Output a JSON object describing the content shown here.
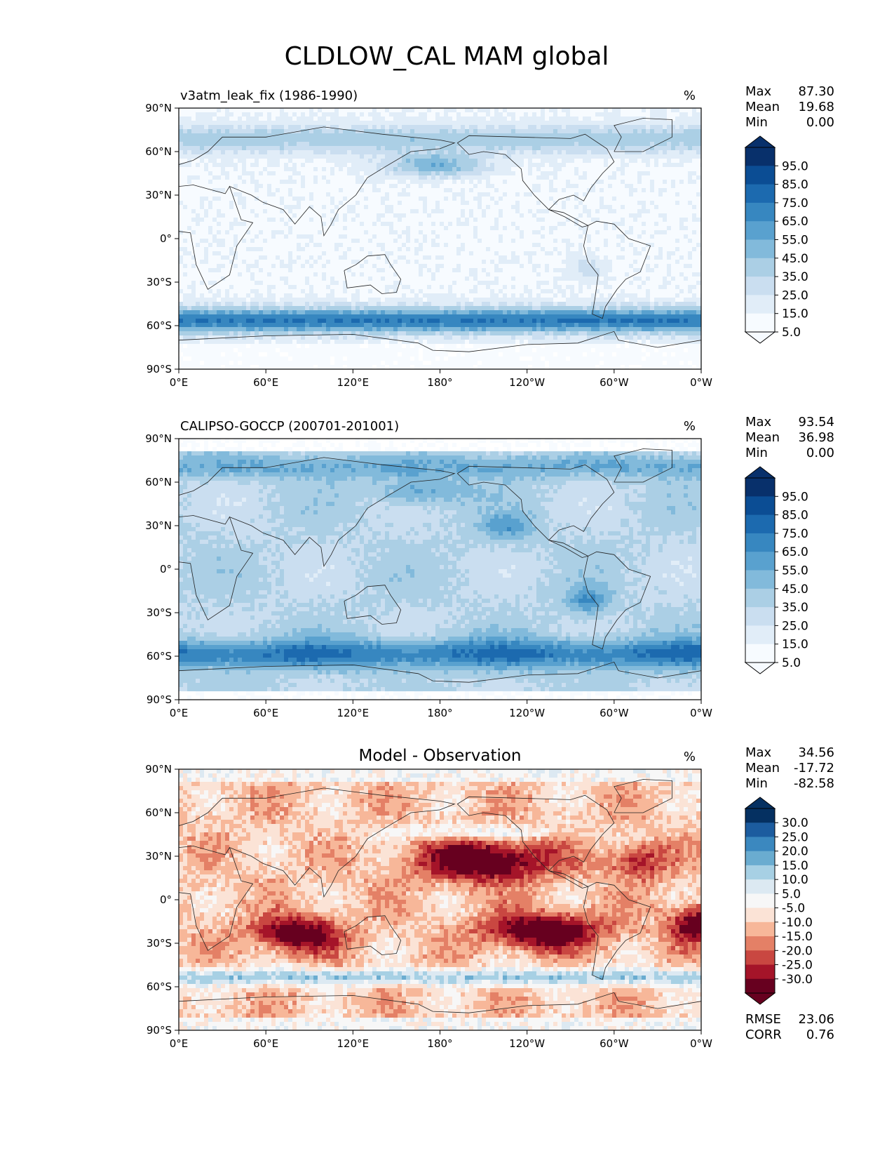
{
  "title": "CLDLOW_CAL MAM global",
  "lat_ticks": [
    "90°N",
    "60°N",
    "30°N",
    "0°",
    "30°S",
    "60°S",
    "90°S"
  ],
  "lon_ticks": [
    "0°E",
    "60°E",
    "120°E",
    "180°",
    "120°W",
    "60°W",
    "0°W"
  ],
  "stat_labels": {
    "max": "Max",
    "mean": "Mean",
    "min": "Min",
    "rmse": "RMSE",
    "corr": "CORR"
  },
  "colors": {
    "blues": [
      "#f7fbff",
      "#e1edf8",
      "#cadef0",
      "#abcfe5",
      "#82badb",
      "#59a1cf",
      "#3787c0",
      "#1c6aaf",
      "#0b4d94",
      "#08306b"
    ],
    "diverging": [
      "#67001f",
      "#a51429",
      "#c94741",
      "#e48066",
      "#f7b799",
      "#fbe3d6",
      "#f7f7f7",
      "#dce9f2",
      "#a7d0e4",
      "#6aacd0",
      "#3b88bf",
      "#1c5c9f",
      "#053061"
    ]
  },
  "panels": [
    {
      "id": "test",
      "left_title": "v3atm_leak_fix (1986-1990)",
      "center_title": "",
      "units": "%",
      "stats": {
        "max": "87.30",
        "mean": "19.68",
        "min": "0.00"
      },
      "colorbar": {
        "palette": "blues",
        "labels": [
          "95.0",
          "85.0",
          "75.0",
          "65.0",
          "55.0",
          "45.0",
          "35.0",
          "25.0",
          "15.0",
          "5.0"
        ]
      }
    },
    {
      "id": "ref",
      "left_title": "CALIPSO-GOCCP (200701-201001)",
      "center_title": "",
      "units": "%",
      "stats": {
        "max": "93.54",
        "mean": "36.98",
        "min": "0.00"
      },
      "colorbar": {
        "palette": "blues",
        "labels": [
          "95.0",
          "85.0",
          "75.0",
          "65.0",
          "55.0",
          "45.0",
          "35.0",
          "25.0",
          "15.0",
          "5.0"
        ]
      }
    },
    {
      "id": "diff",
      "left_title": "",
      "center_title": "Model - Observation",
      "units": "%",
      "stats": {
        "max": "34.56",
        "mean": "-17.72",
        "min": "-82.58"
      },
      "extra_stats": {
        "rmse": "23.06",
        "corr": "0.76"
      },
      "colorbar": {
        "palette": "diverging",
        "labels": [
          "30.0",
          "25.0",
          "20.0",
          "15.0",
          "10.0",
          "5.0",
          "-5.0",
          "-10.0",
          "-15.0",
          "-20.0",
          "-25.0",
          "-30.0"
        ]
      }
    }
  ]
}
